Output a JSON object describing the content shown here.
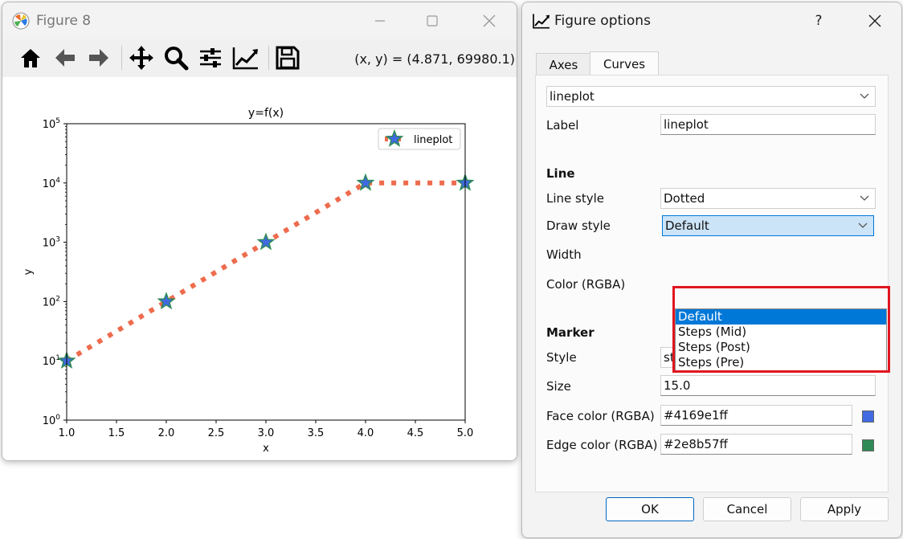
{
  "figure_window": {
    "title": "Figure 8",
    "toolbar": {
      "tools": [
        "home-icon",
        "back-arrow-icon",
        "forward-arrow-icon",
        "pan-icon",
        "zoom-icon",
        "subplots-icon",
        "edit-curves-icon",
        "save-icon"
      ],
      "coords": "(x, y) = (4.871, 69980.1)"
    }
  },
  "chart_data": {
    "type": "line",
    "title": "y=f(x)",
    "xlabel": "x",
    "ylabel": "y",
    "xlim": [
      1.0,
      5.0
    ],
    "ylim": [
      1,
      100000
    ],
    "yscale": "log",
    "xticks": [
      "1.0",
      "1.5",
      "2.0",
      "2.5",
      "3.0",
      "3.5",
      "4.0",
      "4.5",
      "5.0"
    ],
    "yticks": [
      {
        "base": "10",
        "exp": "0"
      },
      {
        "base": "10",
        "exp": "1"
      },
      {
        "base": "10",
        "exp": "2"
      },
      {
        "base": "10",
        "exp": "3"
      },
      {
        "base": "10",
        "exp": "4"
      },
      {
        "base": "10",
        "exp": "5"
      }
    ],
    "legend_position": "top-right",
    "series": [
      {
        "name": "lineplot",
        "x": [
          1,
          2,
          3,
          4,
          5
        ],
        "y": [
          10,
          100,
          1000,
          10000,
          10000
        ],
        "line_color": "#ee6b4d",
        "line_style": "dotted",
        "marker": "star",
        "marker_face": "#4169e1",
        "marker_edge": "#2e8b57"
      }
    ]
  },
  "options_window": {
    "title": "Figure options",
    "help": "?",
    "tabs": [
      "Axes",
      "Curves"
    ],
    "active_tab": "Curves",
    "curve_select": "lineplot",
    "label_label": "Label",
    "label_value": "lineplot",
    "line_header": "Line",
    "line_style_label": "Line style",
    "line_style_value": "Dotted",
    "draw_style_label": "Draw style",
    "draw_style_value": "Default",
    "draw_style_options": [
      "Default",
      "Steps (Mid)",
      "Steps (Post)",
      "Steps (Pre)"
    ],
    "width_label": "Width",
    "color_label": "Color (RGBA)",
    "marker_header": "Marker",
    "marker_style_label": "Style",
    "marker_style_value": "star",
    "size_label": "Size",
    "size_value": "15.0",
    "face_label": "Face color (RGBA)",
    "face_value": "#4169e1ff",
    "face_color": "#4169e1",
    "edge_label": "Edge color (RGBA)",
    "edge_value": "#2e8b57ff",
    "edge_color": "#2e8b57",
    "ok": "OK",
    "cancel": "Cancel",
    "apply": "Apply"
  }
}
